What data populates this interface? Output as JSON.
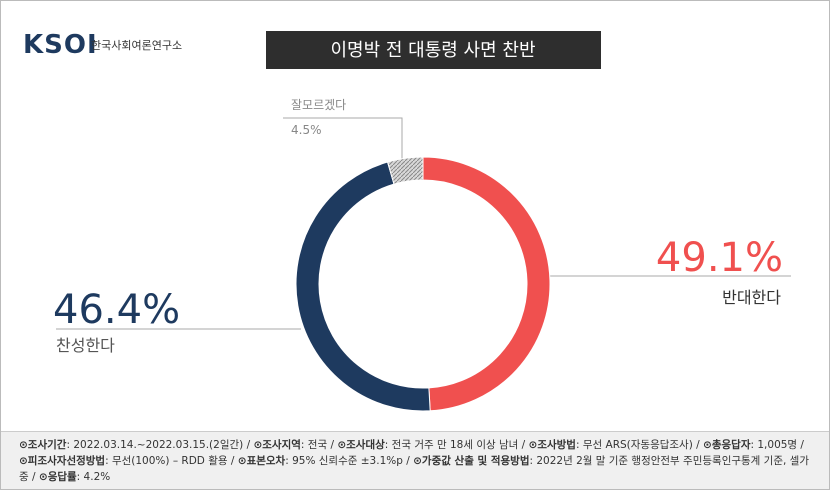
{
  "logo": {
    "mark": "KSOI",
    "name": "한국사회여론연구소"
  },
  "chart_data": {
    "type": "donut",
    "title": "이명박 전 대통령 사면 찬반",
    "categories": [
      "반대한다",
      "찬성한다",
      "잘모르겠다"
    ],
    "values": [
      49.1,
      46.4,
      4.5
    ],
    "value_labels": [
      "49.1%",
      "46.4%",
      "4.5%"
    ],
    "colors": [
      "#f0504f",
      "#1e3a5f",
      "#b8b8b8"
    ]
  },
  "footnote": [
    {
      "label": "⊙조사기간",
      "text": ": 2022.03.14.~2022.03.15.(2일간) /"
    },
    {
      "label": "⊙조사지역",
      "text": ": 전국 /"
    },
    {
      "label": "⊙조사대상",
      "text": ": 전국 거주 만 18세 이상 남녀 /"
    },
    {
      "label": "⊙조사방법",
      "text": ": 무선 ARS(자동응답조사) /"
    },
    {
      "label": "⊙총응답자",
      "text": ": 1,005명 /"
    },
    {
      "label": "⊙피조사자선정방법",
      "text": ": 무선(100%) – RDD 활용 /"
    },
    {
      "label": "⊙표본오차",
      "text": ": 95% 신뢰수준 ±3.1%p /"
    },
    {
      "label": "⊙가중값 산출 및 적용방법",
      "text": ": 2022년 2월 말 기준 행정안전부 주민등록인구통계 기준, 셀가중 /"
    },
    {
      "label": "⊙응답률",
      "text": ": 4.2%"
    }
  ]
}
